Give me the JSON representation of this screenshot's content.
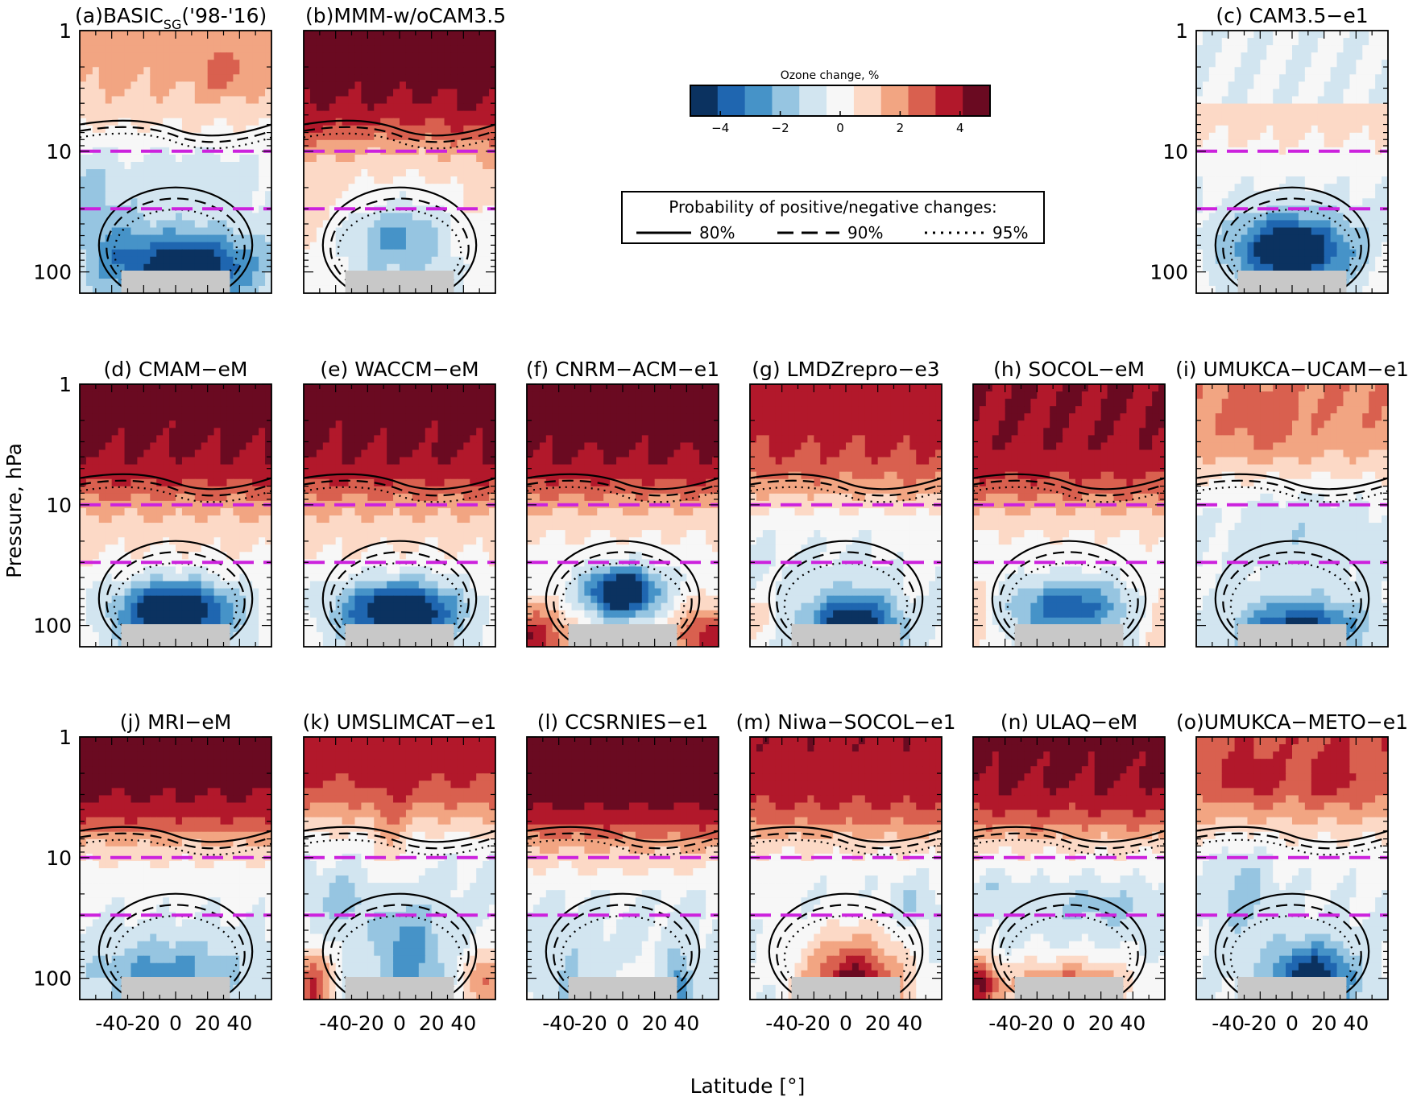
{
  "figure": {
    "ylabel": "Pressure, hPa",
    "xlabel": "Latitude [°]"
  },
  "colorbar": {
    "title": "Ozone change, %",
    "ticks": [
      "−4",
      "−2",
      "0",
      "2",
      "4"
    ],
    "levels": [
      -5,
      -4,
      -3,
      -2,
      -1,
      0,
      1,
      2,
      3,
      4,
      5
    ],
    "colors": [
      "#0b3260",
      "#1f66b0",
      "#4693c8",
      "#96c5e1",
      "#d2e5f0",
      "#f7f7f7",
      "#fcd9c6",
      "#f2a582",
      "#d9604f",
      "#b2182b",
      "#6a0a21"
    ]
  },
  "legend": {
    "title": "Probability of positive/negative changes:",
    "items": [
      {
        "label": "80%",
        "style": "solid"
      },
      {
        "label": "90%",
        "style": "dashed"
      },
      {
        "label": "95%",
        "style": "dotted"
      }
    ]
  },
  "reference_lines": {
    "pressures_hPa": [
      10,
      30
    ],
    "color": "#cc22dd"
  },
  "chart_data": [
    {
      "type": "heatmap",
      "id": "a",
      "title_prefix": "(a)BASIC",
      "title_sub": "SG",
      "title_suffix": "('98-'16)",
      "title": "(a)BASICSG('98-'16)",
      "pattern": "basic",
      "xlim": [
        -60,
        60
      ],
      "ylim_hPa": [
        1,
        150
      ],
      "yticks": [
        "1",
        "10",
        "100"
      ],
      "xticks": [],
      "y_scale": "log"
    },
    {
      "type": "heatmap",
      "id": "b",
      "title": "(b)MMM-w/oCAM3.5",
      "pattern": "mmm",
      "xlim": [
        -60,
        60
      ],
      "ylim_hPa": [
        1,
        150
      ],
      "yticks": [],
      "xticks": [],
      "y_scale": "log"
    },
    {
      "type": "heatmap",
      "id": "c",
      "title": "(c) CAM3.5−e1",
      "pattern": "cam",
      "xlim": [
        -60,
        60
      ],
      "ylim_hPa": [
        1,
        150
      ],
      "yticks": [
        "1",
        "10",
        "100"
      ],
      "xticks": [],
      "y_scale": "log"
    },
    {
      "type": "heatmap",
      "id": "d",
      "title": "(d) CMAM−eM",
      "pattern": "model_strong",
      "xlim": [
        -60,
        60
      ],
      "ylim_hPa": [
        1,
        150
      ],
      "yticks": [
        "1",
        "10",
        "100"
      ],
      "xticks": [],
      "y_scale": "log"
    },
    {
      "type": "heatmap",
      "id": "e",
      "title": "(e) WACCM−eM",
      "pattern": "model_strong",
      "xlim": [
        -60,
        60
      ],
      "ylim_hPa": [
        1,
        150
      ],
      "yticks": [],
      "xticks": [],
      "y_scale": "log"
    },
    {
      "type": "heatmap",
      "id": "f",
      "title": "(f) CNRM−ACM−e1",
      "pattern": "model_cnrm",
      "xlim": [
        -60,
        60
      ],
      "ylim_hPa": [
        1,
        150
      ],
      "yticks": [],
      "xticks": [],
      "y_scale": "log"
    },
    {
      "type": "heatmap",
      "id": "g",
      "title": "(g) LMDZrepro−e3",
      "pattern": "model_weak",
      "xlim": [
        -60,
        60
      ],
      "ylim_hPa": [
        1,
        150
      ],
      "yticks": [],
      "xticks": [],
      "y_scale": "log"
    },
    {
      "type": "heatmap",
      "id": "h",
      "title": "(h) SOCOL−eM",
      "pattern": "model_mid",
      "xlim": [
        -60,
        60
      ],
      "ylim_hPa": [
        1,
        150
      ],
      "yticks": [],
      "xticks": [],
      "y_scale": "log"
    },
    {
      "type": "heatmap",
      "id": "i",
      "title": "(i) UMUKCA−UCAM−e1",
      "pattern": "model_ucam",
      "xlim": [
        -60,
        60
      ],
      "ylim_hPa": [
        1,
        150
      ],
      "yticks": [],
      "xticks": [],
      "y_scale": "log"
    },
    {
      "type": "heatmap",
      "id": "j",
      "title": "(j) MRI−eM",
      "pattern": "model_mri",
      "xlim": [
        -60,
        60
      ],
      "ylim_hPa": [
        1,
        150
      ],
      "yticks": [
        "1",
        "10",
        "100"
      ],
      "xticks": [
        "-40",
        "-20",
        "0",
        "20",
        "40"
      ],
      "y_scale": "log"
    },
    {
      "type": "heatmap",
      "id": "k",
      "title": "(k) UMSLIMCAT−e1",
      "pattern": "model_slim",
      "xlim": [
        -60,
        60
      ],
      "ylim_hPa": [
        1,
        150
      ],
      "yticks": [],
      "xticks": [
        "-40",
        "-20",
        "0",
        "20",
        "40"
      ],
      "y_scale": "log"
    },
    {
      "type": "heatmap",
      "id": "l",
      "title": "(l) CCSRNIES−e1",
      "pattern": "model_ccsr",
      "xlim": [
        -60,
        60
      ],
      "ylim_hPa": [
        1,
        150
      ],
      "yticks": [],
      "xticks": [
        "-40",
        "-20",
        "0",
        "20",
        "40"
      ],
      "y_scale": "log"
    },
    {
      "type": "heatmap",
      "id": "m",
      "title": "(m) Niwa−SOCOL−e1",
      "pattern": "model_niwa",
      "xlim": [
        -60,
        60
      ],
      "ylim_hPa": [
        1,
        150
      ],
      "yticks": [],
      "xticks": [
        "-40",
        "-20",
        "0",
        "20",
        "40"
      ],
      "y_scale": "log"
    },
    {
      "type": "heatmap",
      "id": "n",
      "title": "(n) ULAQ−eM",
      "pattern": "model_ulaq",
      "xlim": [
        -60,
        60
      ],
      "ylim_hPa": [
        1,
        150
      ],
      "yticks": [],
      "xticks": [
        "-40",
        "-20",
        "0",
        "20",
        "40"
      ],
      "y_scale": "log"
    },
    {
      "type": "heatmap",
      "id": "o",
      "title": "(o)UMUKCA−METO−e1",
      "pattern": "model_meto",
      "xlim": [
        -60,
        60
      ],
      "ylim_hPa": [
        1,
        150
      ],
      "yticks": [],
      "xticks": [
        "-40",
        "-20",
        "0",
        "20",
        "40"
      ],
      "y_scale": "log"
    }
  ]
}
